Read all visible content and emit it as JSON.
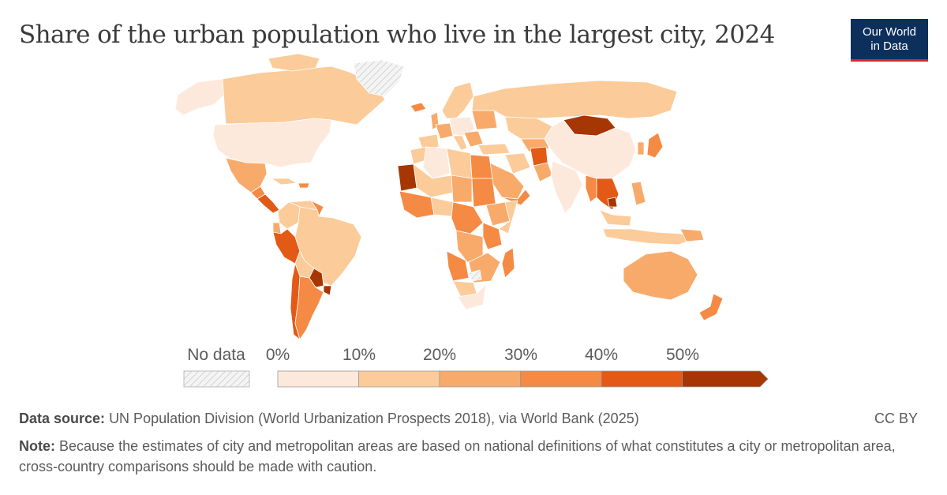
{
  "header": {
    "title": "Share of the urban population who live in the largest city, 2024",
    "logo_line1": "Our World",
    "logo_line2": "in Data"
  },
  "legend": {
    "no_data_label": "No data",
    "bins": [
      {
        "from": 0,
        "to": 10,
        "color": "#fde9dc"
      },
      {
        "from": 10,
        "to": 20,
        "color": "#fbcb9a"
      },
      {
        "from": 20,
        "to": 30,
        "color": "#f8aa6b"
      },
      {
        "from": 30,
        "to": 40,
        "color": "#f58a44"
      },
      {
        "from": 40,
        "to": 50,
        "color": "#e25a16"
      },
      {
        "from": 50,
        "to": null,
        "color": "#a63603"
      }
    ],
    "tick_labels": [
      "0%",
      "10%",
      "20%",
      "30%",
      "40%",
      "50%"
    ],
    "no_data_color": "#f2f2f2"
  },
  "footer": {
    "source_label": "Data source:",
    "source_text": "UN Population Division (World Urbanization Prospects 2018), via World Bank (2025)",
    "license": "CC BY",
    "note_label": "Note:",
    "note_text": "Because the estimates of city and metropolitan areas are based on national definitions of what constitutes a city or metropolitan area, cross-country comparisons should be made with caution."
  },
  "colors": {
    "title": "#3b3b3b",
    "text": "#5b5b5b",
    "logo_bg": "#0c2f5c",
    "logo_accent": "#d42b2b",
    "map_border": "#ffffff"
  }
}
